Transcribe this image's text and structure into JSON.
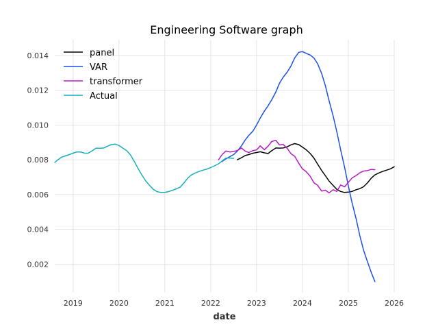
{
  "chart_data": {
    "type": "line",
    "title": "Engineering Software graph",
    "xlabel": "date",
    "ylabel": "",
    "xlim": [
      2018.6,
      2026.0
    ],
    "ylim": [
      0.0004,
      0.0149
    ],
    "x_ticks": [
      2019,
      2020,
      2021,
      2022,
      2023,
      2024,
      2025,
      2026
    ],
    "y_ticks": [
      0.002,
      0.004,
      0.006,
      0.008,
      0.01,
      0.012,
      0.014
    ],
    "y_tick_labels": [
      "0.002",
      "0.004",
      "0.006",
      "0.008",
      "0.010",
      "0.012",
      "0.014"
    ],
    "grid": true,
    "legend_position": "top-left",
    "series": [
      {
        "name": "panel",
        "color": "#000000",
        "x": [
          2022.58,
          2022.67,
          2022.75,
          2022.83,
          2022.92,
          2023.0,
          2023.08,
          2023.17,
          2023.25,
          2023.33,
          2023.42,
          2023.5,
          2023.58,
          2023.67,
          2023.75,
          2023.83,
          2023.92,
          2024.0,
          2024.08,
          2024.17,
          2024.25,
          2024.33,
          2024.42,
          2024.5,
          2024.58,
          2024.67,
          2024.75,
          2024.83,
          2024.92,
          2025.0,
          2025.08,
          2025.17,
          2025.25,
          2025.33,
          2025.42,
          2025.5,
          2025.58,
          2025.67,
          2025.75,
          2025.83,
          2025.92,
          2026.0
        ],
        "values": [
          0.008,
          0.00812,
          0.00824,
          0.0083,
          0.00838,
          0.00842,
          0.00846,
          0.0084,
          0.00836,
          0.00852,
          0.00868,
          0.00867,
          0.00868,
          0.00875,
          0.00886,
          0.00893,
          0.00887,
          0.00873,
          0.00858,
          0.00836,
          0.0081,
          0.00775,
          0.00738,
          0.00708,
          0.00678,
          0.00652,
          0.0063,
          0.00618,
          0.00612,
          0.00614,
          0.00618,
          0.00628,
          0.00634,
          0.00645,
          0.00668,
          0.00695,
          0.00713,
          0.00725,
          0.00733,
          0.0074,
          0.00748,
          0.0076
        ]
      },
      {
        "name": "VAR",
        "color": "#1b4fe6",
        "x": [
          2022.25,
          2022.33,
          2022.42,
          2022.5,
          2022.58,
          2022.67,
          2022.75,
          2022.83,
          2022.92,
          2023.0,
          2023.08,
          2023.17,
          2023.25,
          2023.33,
          2023.42,
          2023.5,
          2023.58,
          2023.67,
          2023.75,
          2023.83,
          2023.92,
          2024.0,
          2024.08,
          2024.17,
          2024.25,
          2024.33,
          2024.42,
          2024.5,
          2024.58,
          2024.67,
          2024.75,
          2024.83,
          2024.92,
          2025.0,
          2025.08,
          2025.17,
          2025.25,
          2025.33,
          2025.42,
          2025.5,
          2025.58
        ],
        "values": [
          0.0079,
          0.00805,
          0.00818,
          0.0083,
          0.0085,
          0.0088,
          0.00913,
          0.0094,
          0.00965,
          0.01,
          0.0104,
          0.0108,
          0.0111,
          0.01145,
          0.0119,
          0.0124,
          0.01275,
          0.01305,
          0.0134,
          0.01385,
          0.01418,
          0.01422,
          0.01412,
          0.01402,
          0.01385,
          0.01352,
          0.01295,
          0.01225,
          0.0114,
          0.0105,
          0.0096,
          0.0086,
          0.00755,
          0.0065,
          0.00555,
          0.0046,
          0.00365,
          0.00282,
          0.00212,
          0.00152,
          0.001
        ]
      },
      {
        "name": "transformer",
        "color": "#b41ac4",
        "x": [
          2022.17,
          2022.25,
          2022.33,
          2022.42,
          2022.5,
          2022.58,
          2022.67,
          2022.75,
          2022.83,
          2022.92,
          2023.0,
          2023.08,
          2023.17,
          2023.25,
          2023.33,
          2023.42,
          2023.5,
          2023.58,
          2023.67,
          2023.75,
          2023.83,
          2023.92,
          2024.0,
          2024.08,
          2024.17,
          2024.25,
          2024.33,
          2024.42,
          2024.5,
          2024.58,
          2024.67,
          2024.75,
          2024.83,
          2024.92,
          2025.0,
          2025.08,
          2025.17,
          2025.25,
          2025.33,
          2025.42,
          2025.5,
          2025.58
        ],
        "values": [
          0.008,
          0.0083,
          0.0085,
          0.00845,
          0.00848,
          0.00853,
          0.00868,
          0.0085,
          0.00842,
          0.00853,
          0.00857,
          0.0088,
          0.00858,
          0.00878,
          0.00905,
          0.00912,
          0.00885,
          0.00888,
          0.00865,
          0.00835,
          0.0082,
          0.0078,
          0.00748,
          0.00732,
          0.00705,
          0.00668,
          0.00653,
          0.0062,
          0.00625,
          0.0061,
          0.00628,
          0.00618,
          0.00655,
          0.00645,
          0.0067,
          0.00695,
          0.0071,
          0.00725,
          0.00735,
          0.00738,
          0.00745,
          0.00743
        ]
      },
      {
        "name": "Actual",
        "color": "#17aebd",
        "x": [
          2018.6,
          2018.67,
          2018.75,
          2018.83,
          2018.92,
          2019.0,
          2019.08,
          2019.17,
          2019.25,
          2019.33,
          2019.42,
          2019.5,
          2019.58,
          2019.67,
          2019.75,
          2019.83,
          2019.92,
          2020.0,
          2020.08,
          2020.17,
          2020.25,
          2020.33,
          2020.42,
          2020.5,
          2020.58,
          2020.67,
          2020.75,
          2020.83,
          2020.92,
          2021.0,
          2021.08,
          2021.17,
          2021.25,
          2021.33,
          2021.42,
          2021.5,
          2021.58,
          2021.67,
          2021.75,
          2021.83,
          2021.92,
          2022.0,
          2022.08,
          2022.17,
          2022.25,
          2022.33,
          2022.42,
          2022.5
        ],
        "values": [
          0.00785,
          0.008,
          0.00815,
          0.00822,
          0.0083,
          0.00838,
          0.00845,
          0.00845,
          0.00838,
          0.00838,
          0.00853,
          0.00867,
          0.00866,
          0.00868,
          0.00878,
          0.00887,
          0.0089,
          0.00882,
          0.00868,
          0.00852,
          0.00828,
          0.00792,
          0.00748,
          0.00712,
          0.0068,
          0.00652,
          0.0063,
          0.00617,
          0.00612,
          0.00613,
          0.00617,
          0.00625,
          0.00633,
          0.00642,
          0.00668,
          0.00695,
          0.00713,
          0.00725,
          0.00733,
          0.0074,
          0.00747,
          0.00755,
          0.00765,
          0.00777,
          0.00793,
          0.0081,
          0.0081,
          0.00808
        ]
      }
    ]
  }
}
